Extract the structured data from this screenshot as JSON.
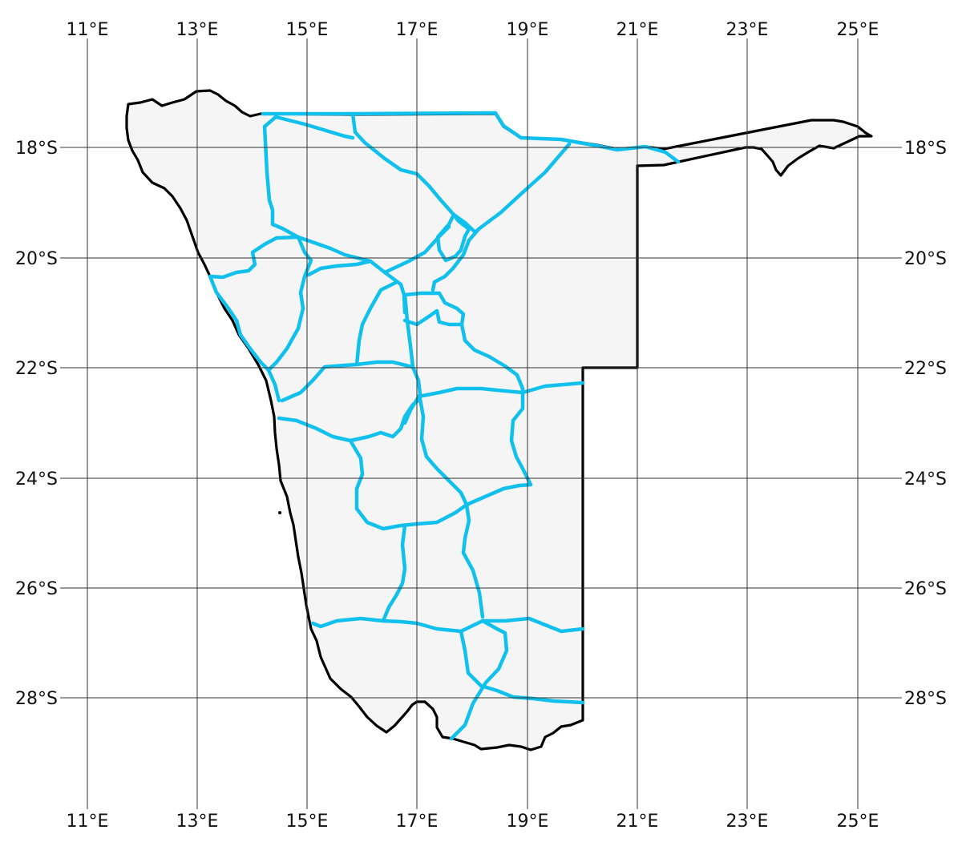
{
  "map": {
    "country_fill": "#f5f5f5",
    "border_color": "#000000",
    "road_color": "#11c0ec",
    "grid_color": "#333333",
    "longitude_labels": [
      "11°E",
      "13°E",
      "15°E",
      "17°E",
      "19°E",
      "21°E",
      "23°E",
      "25°E"
    ],
    "latitude_labels": [
      "18°S",
      "20°S",
      "22°S",
      "24°S",
      "26°S",
      "28°S"
    ],
    "label_sides": {
      "longitude": [
        "top",
        "bottom"
      ],
      "latitude": [
        "left",
        "right"
      ]
    },
    "graticule": "on"
  }
}
